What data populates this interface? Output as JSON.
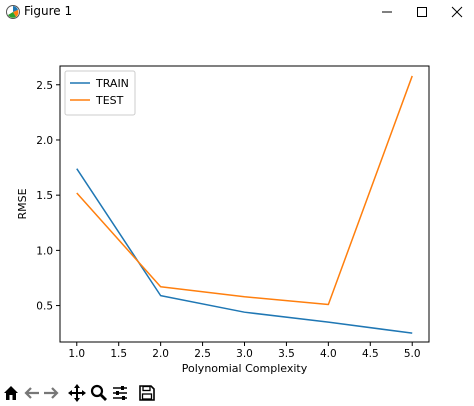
{
  "window": {
    "title": "Figure 1"
  },
  "toolbar": {
    "icons": [
      "home-icon",
      "back-icon",
      "forward-icon",
      "pan-icon",
      "zoom-icon",
      "configure-subplots-icon",
      "save-icon"
    ]
  },
  "colors": {
    "train": "#1f77b4",
    "test": "#ff7f0e"
  },
  "chart_data": {
    "type": "line",
    "xlabel": "Polynomial Complexity",
    "ylabel": "RMSE",
    "x": [
      1.0,
      2.0,
      3.0,
      4.0,
      5.0
    ],
    "xlim": [
      0.8,
      5.2
    ],
    "ylim": [
      0.17,
      2.67
    ],
    "xticks": [
      "1.0",
      "1.5",
      "2.0",
      "2.5",
      "3.0",
      "3.5",
      "4.0",
      "4.5",
      "5.0"
    ],
    "yticks": [
      "0.5",
      "1.0",
      "1.5",
      "2.0",
      "2.5"
    ],
    "grid": false,
    "legend_position": "upper left",
    "series": [
      {
        "name": "TRAIN",
        "values": [
          1.74,
          0.59,
          0.44,
          0.35,
          0.25
        ]
      },
      {
        "name": "TEST",
        "values": [
          1.52,
          0.67,
          0.58,
          0.51,
          2.58
        ]
      }
    ]
  }
}
